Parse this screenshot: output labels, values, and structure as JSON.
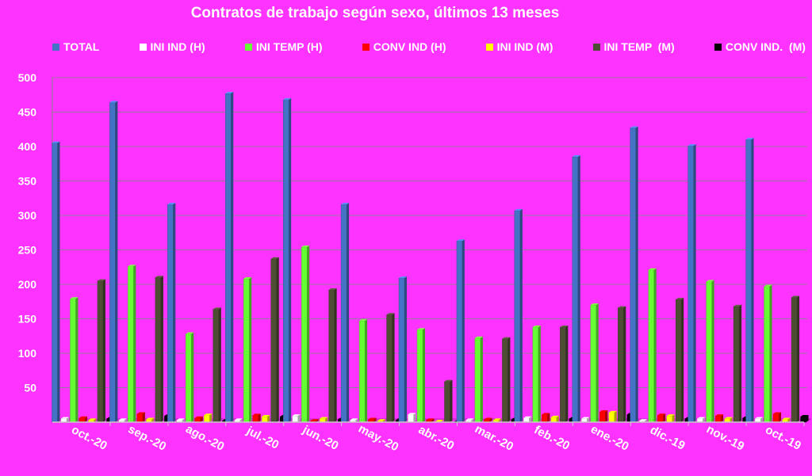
{
  "chart_data": {
    "type": "bar",
    "title": "Contratos de trabajo según sexo, últimos 13 meses",
    "xlabel": "",
    "ylabel": "",
    "ylim": [
      0,
      500
    ],
    "yticks": [
      50,
      100,
      150,
      200,
      250,
      300,
      350,
      400,
      450,
      500
    ],
    "grid": true,
    "legend_position": "top",
    "categories": [
      "oct.-20",
      "sep.-20",
      "ago.-20",
      "jul.-20",
      "jun.-20",
      "may.-20",
      "abr.-20",
      "mar.-20",
      "feb.-20",
      "ene.-20",
      "dic.-19",
      "nov.-19",
      "oct.-19"
    ],
    "series": [
      {
        "name": "TOTAL",
        "color": "#4472c4",
        "values": [
          405,
          464,
          316,
          477,
          468,
          316,
          209,
          263,
          307,
          385,
          427,
          401,
          410
        ]
      },
      {
        "name": "INI IND (H)",
        "color": "#ffffff",
        "values": [
          5,
          3,
          3,
          3,
          9,
          3,
          11,
          3,
          6,
          5,
          2,
          5,
          5
        ]
      },
      {
        "name": "INI TEMP (H)",
        "color": "#66ff33",
        "values": [
          179,
          226,
          128,
          208,
          254,
          147,
          134,
          122,
          138,
          170,
          221,
          204,
          197
        ]
      },
      {
        "name": "CONV IND (H)",
        "color": "#ff0000",
        "values": [
          6,
          12,
          6,
          10,
          2,
          4,
          3,
          4,
          11,
          15,
          10,
          9,
          12
        ]
      },
      {
        "name": "INI IND (M)",
        "color": "#ffff00",
        "values": [
          3,
          4,
          10,
          8,
          5,
          2,
          1,
          3,
          7,
          14,
          9,
          5,
          4
        ]
      },
      {
        "name": "INI TEMP  (M)",
        "color": "#4d4d33",
        "values": [
          205,
          210,
          164,
          237,
          192,
          156,
          59,
          121,
          138,
          166,
          178,
          168,
          181
        ]
      },
      {
        "name": "CONV IND.  (M)",
        "color": "#000000",
        "values": [
          5,
          9,
          2,
          8,
          4,
          3,
          0,
          4,
          5,
          11,
          5,
          6,
          8
        ]
      }
    ]
  }
}
